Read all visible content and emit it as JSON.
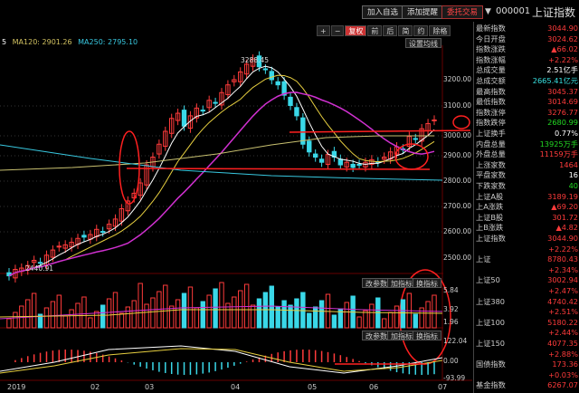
{
  "toolbar_top": {
    "add_watch": "加入自选",
    "add_alert": "添加提醒",
    "delegate": "委托交易",
    "code": "000001",
    "name": "上证指数"
  },
  "ma_legend": {
    "prefix": "5",
    "ma120": "MA120: 2901.26",
    "ma250": "MA250: 2795.10",
    "ma120_color": "#d0c060",
    "ma250_color": "#38c8e0"
  },
  "chart_toolbar": {
    "buttons": [
      "+",
      "−",
      "复权",
      "前",
      "后",
      "简",
      "约",
      "除格"
    ],
    "active": "复权",
    "settings": "设置均线"
  },
  "price_axis": [
    "3200.00",
    "3100.00",
    "3000.00",
    "2900.00",
    "2800.00",
    "2700.00",
    "2600.00",
    "2500.00"
  ],
  "annotations": {
    "high": "3288.45",
    "low": "2440.91"
  },
  "sub_buttons": {
    "param": "改参数",
    "add_ind": "加指标",
    "switch_ind": "换指标"
  },
  "vol_axis": [
    "5.84",
    "3.92",
    "1.96"
  ],
  "macd_axis": [
    "122.04",
    "0.00",
    "-93.99"
  ],
  "dates": [
    "2019",
    "02",
    "03",
    "04",
    "05",
    "06",
    "07"
  ],
  "sidebar": [
    {
      "label": "最新指数",
      "value": "3044.90",
      "color": "red"
    },
    {
      "label": "今日开盘",
      "value": "3024.62",
      "color": "red"
    },
    {
      "label": "指数涨跌",
      "value": "▲66.02",
      "color": "red"
    },
    {
      "label": "指数涨幅",
      "value": "+2.22%",
      "color": "red"
    },
    {
      "label": "总成交量",
      "value": "2.51亿手",
      "color": "wht"
    },
    {
      "label": "总成交额",
      "value": "2665.41亿元",
      "color": "cyan"
    },
    {
      "label": "最高指数",
      "value": "3045.37",
      "color": "red"
    },
    {
      "label": "最低指数",
      "value": "3014.69",
      "color": "red"
    },
    {
      "label": "指数涨停",
      "value": "3276.77",
      "color": "red"
    },
    {
      "label": "指数跌停",
      "value": "2680.99",
      "color": "grn"
    },
    {
      "label": "上证换手",
      "value": "0.77%",
      "color": "wht"
    },
    {
      "label": "内盘总量",
      "value": "13925万手",
      "color": "grn"
    },
    {
      "label": "外盘总量",
      "value": "11159万手",
      "color": "red"
    },
    {
      "label": "上涨家数",
      "value": "1464",
      "color": "red"
    },
    {
      "label": "平盘家数",
      "value": "16",
      "color": "wht"
    },
    {
      "label": "下跌家数",
      "value": "40",
      "color": "grn"
    },
    {
      "label": "上证A股",
      "value": "3189.19",
      "color": "red"
    },
    {
      "label": "上A涨跌",
      "value": "▲69.20",
      "color": "red"
    },
    {
      "label": "上证B股",
      "value": "301.72",
      "color": "red"
    },
    {
      "label": "上B涨跌",
      "value": "▲4.82",
      "color": "red"
    },
    {
      "label": "上证指数",
      "value": "3044.90",
      "color": "red"
    },
    {
      "label": "",
      "value": "+2.22%",
      "color": "red"
    },
    {
      "label": "上证",
      "value": "8780.43",
      "color": "red"
    },
    {
      "label": "",
      "value": "+2.34%",
      "color": "red"
    },
    {
      "label": "上证50",
      "value": "3002.94",
      "color": "red"
    },
    {
      "label": "",
      "value": "+2.47%",
      "color": "red"
    },
    {
      "label": "上证380",
      "value": "4740.42",
      "color": "red"
    },
    {
      "label": "",
      "value": "+2.51%",
      "color": "red"
    },
    {
      "label": "上证100",
      "value": "5180.22",
      "color": "red"
    },
    {
      "label": "",
      "value": "+2.44%",
      "color": "red"
    },
    {
      "label": "上证150",
      "value": "4077.35",
      "color": "red"
    },
    {
      "label": "",
      "value": "+2.88%",
      "color": "red"
    },
    {
      "label": "国债指数",
      "value": "173.36",
      "color": "red"
    },
    {
      "label": "",
      "value": "+0.03%",
      "color": "red"
    },
    {
      "label": "基金指数",
      "value": "6267.07",
      "color": "red"
    }
  ]
}
